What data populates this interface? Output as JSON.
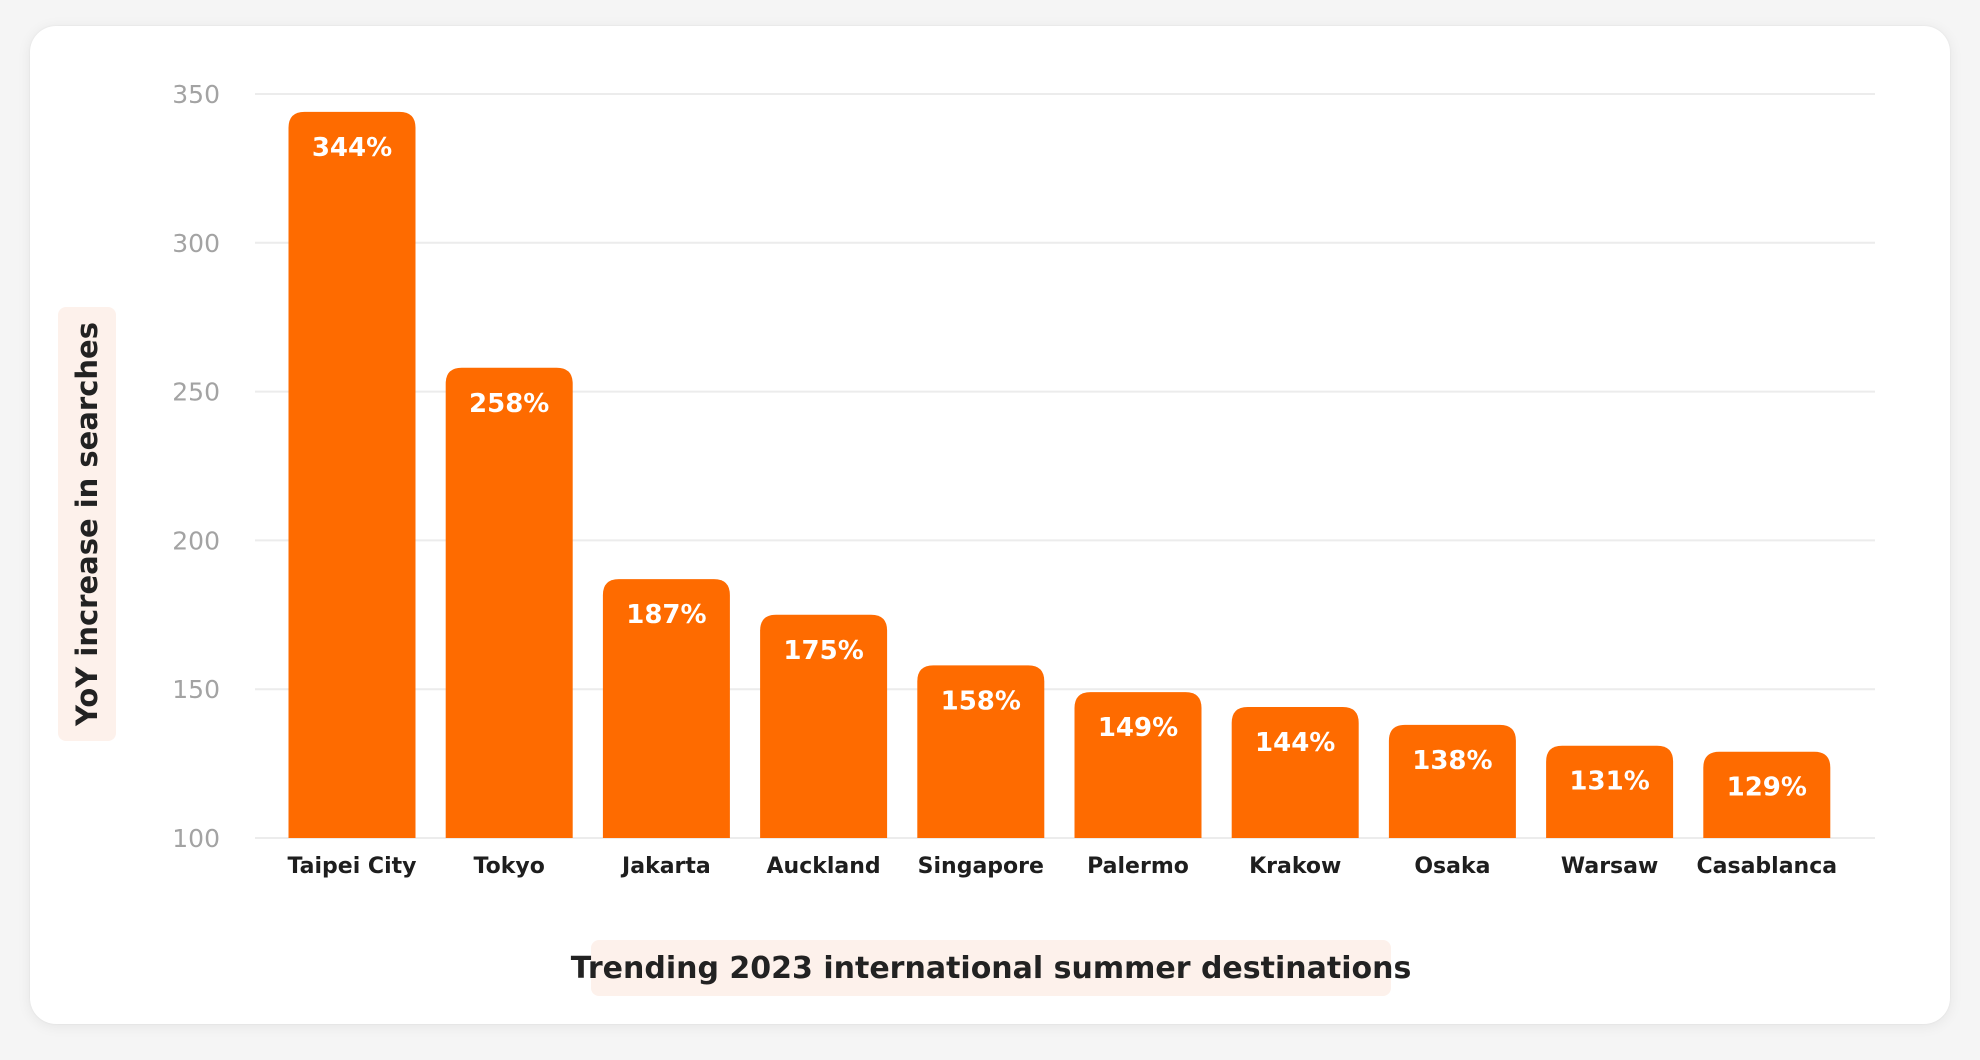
{
  "chart_data": {
    "type": "bar",
    "title": "",
    "xlabel": "Trending 2023 international summer destinations",
    "ylabel": "YoY increase in searches",
    "categories": [
      "Taipei City",
      "Tokyo",
      "Jakarta",
      "Auckland",
      "Singapore",
      "Palermo",
      "Krakow",
      "Osaka",
      "Warsaw",
      "Casablanca"
    ],
    "values": [
      344,
      258,
      187,
      175,
      158,
      149,
      144,
      138,
      131,
      129
    ],
    "value_labels": [
      "344%",
      "258%",
      "187%",
      "175%",
      "158%",
      "149%",
      "144%",
      "138%",
      "131%",
      "129%"
    ],
    "ylim": [
      100,
      350
    ],
    "yticks": [
      100,
      150,
      200,
      250,
      300,
      350
    ],
    "ytick_labels": [
      "100",
      "150",
      "200",
      "250",
      "300",
      "350"
    ],
    "grid": true,
    "legend": "none",
    "colors": {
      "bar": "#fe6b00",
      "grid": "#ececec",
      "label_box": "#fdf1eb"
    }
  }
}
